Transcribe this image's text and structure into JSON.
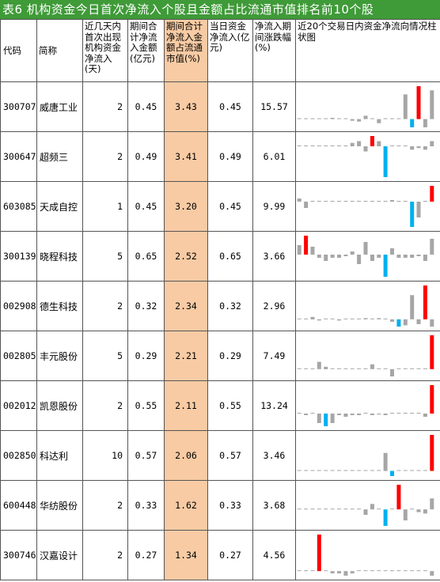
{
  "title": "表6 机构资金今日首次净流入个股且金额占比流通市值排名前10个股",
  "headers": {
    "code": "代码",
    "name": "简称",
    "days": "近几天内首次出现机构资金净流入(天)",
    "period_inflow": "期间合计净流入金额(亿元)",
    "period_ratio": "期间合计净流入金额占流通市值(%)",
    "today_inflow": "当日资金净流入(亿元)",
    "period_change": "净流入期间涨跌幅(%)",
    "chart": "近20个交易日内资金净流向情况柱状图"
  },
  "colors": {
    "title_bg": "#3f9a38",
    "highlight": "#f8cba4",
    "pos": "#ff0000",
    "neg": "#00b0f0",
    "other": "#a6a6a6"
  },
  "rows": [
    {
      "code": "300707",
      "name": "威唐工业",
      "days": "2",
      "period_inflow": "0.45",
      "period_ratio": "3.43",
      "today_inflow": "0.45",
      "period_change": "15.57",
      "bars": [
        0,
        0,
        0,
        0,
        0,
        0.3,
        0,
        0,
        -0.4,
        -0.6,
        0.8,
        0,
        -1.0,
        0,
        0,
        0,
        6.0,
        -2.0,
        8.0,
        -2.0,
        7.0
      ],
      "red": 18,
      "blue": 17
    },
    {
      "code": "300647",
      "name": "超频三",
      "days": "2",
      "period_inflow": "0.49",
      "period_ratio": "3.41",
      "today_inflow": "0.49",
      "period_change": "6.01",
      "bars": [
        0,
        0,
        0,
        0,
        0,
        0,
        0,
        0,
        1.0,
        1.5,
        -1.5,
        3.0,
        1.5,
        -9.0,
        0,
        0,
        0,
        -1.0,
        -0.5,
        -1.0,
        1.5
      ],
      "red": 11,
      "blue": 13
    },
    {
      "code": "603085",
      "name": "天成自控",
      "days": "1",
      "period_inflow": "0.45",
      "period_ratio": "3.20",
      "today_inflow": "0.45",
      "period_change": "9.99",
      "bars": [
        1.0,
        -2.0,
        0,
        0,
        0,
        0,
        0,
        0,
        0,
        0,
        0,
        0,
        0,
        0,
        0.5,
        0,
        0,
        -8.0,
        -5.0,
        0,
        5.0
      ],
      "red": 20,
      "blue": 17
    },
    {
      "code": "300139",
      "name": "晓程科技",
      "days": "5",
      "period_inflow": "0.65",
      "period_ratio": "2.52",
      "today_inflow": "0.65",
      "period_change": "3.66",
      "bars": [
        3.0,
        6.0,
        2.5,
        -1.0,
        -2.0,
        -1.0,
        -1.0,
        -0.5,
        1.0,
        -3.0,
        4.0,
        -2.0,
        -1.0,
        -7.0,
        2.0,
        -1.0,
        -1.0,
        -1.0,
        -0.5,
        -2.0,
        5.0
      ],
      "red": 1,
      "blue": 13
    },
    {
      "code": "002908",
      "name": "德生科技",
      "days": "2",
      "period_inflow": "0.32",
      "period_ratio": "2.34",
      "today_inflow": "0.32",
      "period_change": "2.96",
      "bars": [
        0,
        0,
        1.0,
        -0.5,
        0,
        0,
        -0.5,
        0,
        0,
        0,
        0.5,
        0.3,
        0.5,
        0,
        -1.0,
        -3.0,
        -2.5,
        10.0,
        -2.0,
        14.0,
        -3.0
      ],
      "red": 19,
      "blue": 15
    },
    {
      "code": "002805",
      "name": "丰元股份",
      "days": "5",
      "period_inflow": "0.29",
      "period_ratio": "2.21",
      "today_inflow": "0.29",
      "period_change": "7.49",
      "bars": [
        0,
        0,
        0,
        1.5,
        0.5,
        0,
        0,
        0,
        0,
        0,
        0,
        1.0,
        0,
        0,
        -1.5,
        0,
        0,
        0,
        0,
        0,
        7.0
      ],
      "red": 20,
      "blue": -1
    },
    {
      "code": "002012",
      "name": "凯恩股份",
      "days": "2",
      "period_inflow": "0.55",
      "period_ratio": "2.11",
      "today_inflow": "0.55",
      "period_change": "13.24",
      "bars": [
        0,
        -0.5,
        0,
        -3.0,
        -4.0,
        -3.0,
        -0.5,
        -1.0,
        -0.5,
        -0.5,
        0,
        -0.5,
        -0.3,
        -0.5,
        0,
        0,
        0,
        0,
        0,
        -1.0,
        9.0
      ],
      "red": 20,
      "blue": 4
    },
    {
      "code": "002850",
      "name": "科达利",
      "days": "10",
      "period_inflow": "0.57",
      "period_ratio": "2.06",
      "today_inflow": "0.57",
      "period_change": "3.46",
      "bars": [
        0,
        0,
        0.3,
        0,
        0,
        0,
        0,
        0,
        0,
        0,
        0,
        0,
        0,
        7.0,
        -2.0,
        0,
        0,
        0,
        0.3,
        0,
        14.0
      ],
      "red": 20,
      "blue": 14
    },
    {
      "code": "600448",
      "name": "华纺股份",
      "days": "2",
      "period_inflow": "0.33",
      "period_ratio": "1.62",
      "today_inflow": "0.33",
      "period_change": "3.68",
      "bars": [
        0,
        0,
        0,
        0,
        0,
        0,
        0,
        0,
        0,
        0,
        -2.0,
        2.0,
        0,
        -6.0,
        0,
        9.0,
        -4.0,
        0,
        -1.0,
        -1.5,
        4.0
      ],
      "red": 15,
      "blue": 13
    },
    {
      "code": "300746",
      "name": "汉嘉设计",
      "days": "2",
      "period_inflow": "0.27",
      "period_ratio": "1.34",
      "today_inflow": "0.27",
      "period_change": "4.56",
      "bars": [
        0,
        0,
        0,
        8.0,
        0,
        -0.5,
        -0.5,
        -1.0,
        -0.5,
        0,
        0,
        0,
        0,
        0,
        0,
        0,
        0,
        0,
        0,
        0,
        -1.0
      ],
      "red": 3,
      "blue": -1
    }
  ]
}
